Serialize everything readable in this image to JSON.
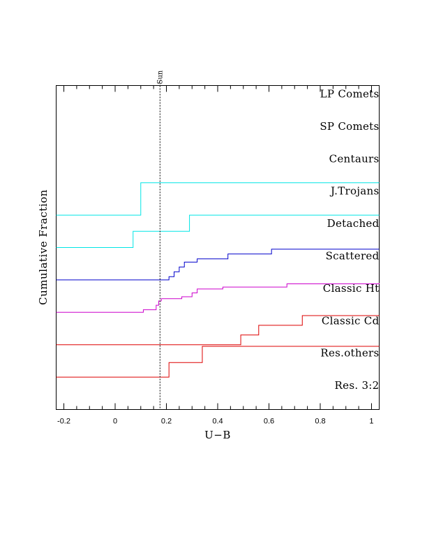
{
  "chart_data": {
    "type": "line",
    "xlabel": "U−B",
    "ylabel": "Cumulative Fraction",
    "xlim": [
      -0.23,
      1.03
    ],
    "x_ticks": [
      {
        "value": -0.2,
        "label": "-0.2"
      },
      {
        "value": 0,
        "label": "0"
      },
      {
        "value": 0.2,
        "label": "0.2"
      },
      {
        "value": 0.4,
        "label": "0.4"
      },
      {
        "value": 0.6,
        "label": "0.6"
      },
      {
        "value": 0.8,
        "label": "0.8"
      },
      {
        "value": 1.0,
        "label": "1"
      }
    ],
    "reference_line": {
      "x": 0.175,
      "label": "Sun",
      "style": "dotted"
    },
    "groups": [
      {
        "label": "LP Comets",
        "color": "",
        "steps": []
      },
      {
        "label": "SP Comets",
        "color": "",
        "steps": []
      },
      {
        "label": "Centaurs",
        "color": "",
        "steps": []
      },
      {
        "label": "J.Trojans",
        "color": "#00e5e5",
        "steps": [
          [
            -0.23,
            0
          ],
          [
            0.1,
            1.0
          ],
          [
            1.03,
            1.0
          ]
        ]
      },
      {
        "label": "Detached",
        "color": "#00e5e5",
        "steps": [
          [
            -0.23,
            0
          ],
          [
            0.07,
            0.5
          ],
          [
            0.29,
            1.0
          ],
          [
            1.03,
            1.0
          ]
        ]
      },
      {
        "label": "Scattered",
        "color": "#0000cc",
        "steps": [
          [
            -0.23,
            0
          ],
          [
            0.21,
            0.1
          ],
          [
            0.23,
            0.25
          ],
          [
            0.25,
            0.4
          ],
          [
            0.27,
            0.55
          ],
          [
            0.32,
            0.65
          ],
          [
            0.44,
            0.8
          ],
          [
            0.61,
            0.95
          ],
          [
            1.03,
            0.95
          ]
        ]
      },
      {
        "label": "Classic Ht",
        "color": "#cc00cc",
        "steps": [
          [
            -0.23,
            0
          ],
          [
            0.11,
            0.08
          ],
          [
            0.16,
            0.22
          ],
          [
            0.17,
            0.35
          ],
          [
            0.18,
            0.42
          ],
          [
            0.26,
            0.48
          ],
          [
            0.3,
            0.6
          ],
          [
            0.32,
            0.72
          ],
          [
            0.42,
            0.78
          ],
          [
            0.67,
            0.88
          ],
          [
            1.03,
            0.9
          ]
        ]
      },
      {
        "label": "Classic Cd",
        "color": "#dd0000",
        "steps": [
          [
            -0.23,
            0
          ],
          [
            0.49,
            0.3
          ],
          [
            0.56,
            0.6
          ],
          [
            0.73,
            0.9
          ],
          [
            1.03,
            0.9
          ]
        ]
      },
      {
        "label": "Res.others",
        "color": "#dd0000",
        "steps": [
          [
            -0.23,
            0
          ],
          [
            0.21,
            0.45
          ],
          [
            0.34,
            0.95
          ],
          [
            1.03,
            0.95
          ]
        ]
      },
      {
        "label": "Res. 3:2",
        "color": "",
        "steps": []
      }
    ]
  }
}
